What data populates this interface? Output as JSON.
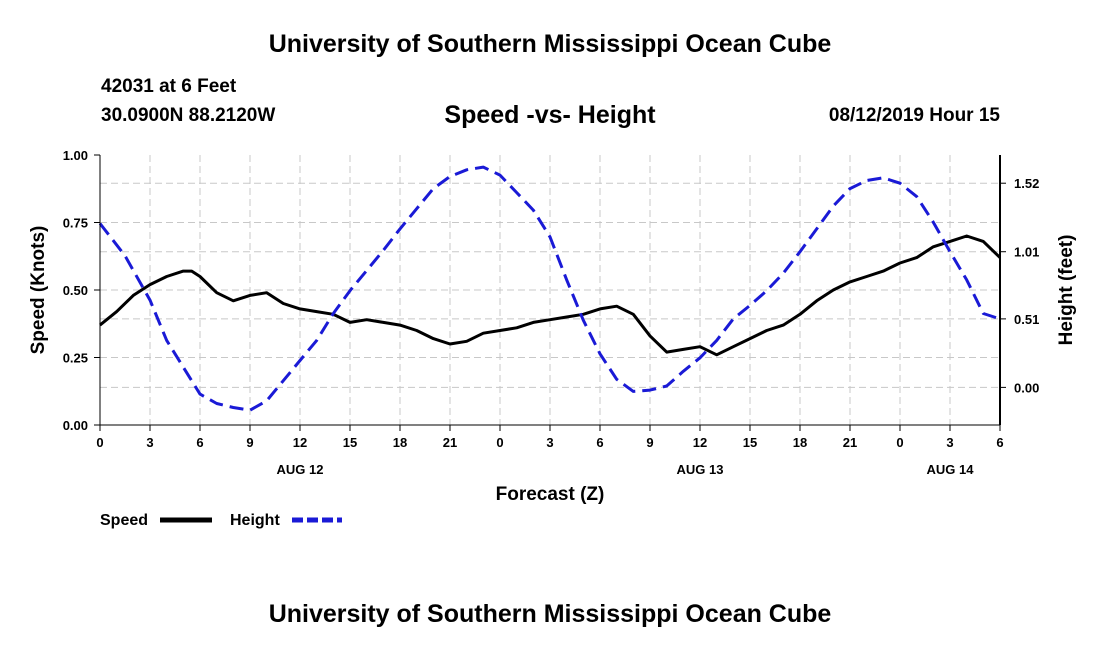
{
  "header": {
    "title": "University of Southern Mississippi Ocean Cube",
    "station": "42031 at 6 Feet",
    "coords": "30.0900N 88.2120W",
    "chart_title": "Speed -vs- Height",
    "datetime": "08/12/2019 Hour 15"
  },
  "footer": {
    "title": "University of Southern Mississippi Ocean Cube"
  },
  "colors": {
    "speed": "#000000",
    "height": "#1a1ad6",
    "grid": "#c8c8c8"
  },
  "chart_data": {
    "type": "line",
    "title": "Speed -vs- Height",
    "xlabel": "Forecast (Z)",
    "ylabel": "Speed (Knots)",
    "y2label": "Height (feet)",
    "xlim": [
      0,
      54
    ],
    "ylim": [
      0,
      1
    ],
    "y2lim": [
      -0.28,
      1.73
    ],
    "x_ticks": [
      0,
      3,
      6,
      9,
      12,
      15,
      18,
      21,
      24,
      27,
      30,
      33,
      36,
      39,
      42,
      45,
      48,
      51,
      54
    ],
    "x_tick_labels": [
      "0",
      "3",
      "6",
      "9",
      "12",
      "15",
      "18",
      "21",
      "0",
      "3",
      "6",
      "9",
      "12",
      "15",
      "18",
      "21",
      "0",
      "3",
      "6"
    ],
    "date_labels": [
      {
        "label": "AUG 12",
        "x": 12
      },
      {
        "label": "AUG 13",
        "x": 36
      },
      {
        "label": "AUG 14",
        "x": 51
      }
    ],
    "y_ticks": [
      0,
      0.25,
      0.5,
      0.75,
      1
    ],
    "y_tick_labels": [
      "0.00",
      "0.25",
      "0.50",
      "0.75",
      "1.00"
    ],
    "y2_ticks": [
      0,
      0.51,
      1.01,
      1.52
    ],
    "y2_tick_labels": [
      "0.00",
      "0.51",
      "1.01",
      "1.52"
    ],
    "legend": [
      {
        "name": "Speed",
        "style": "solid"
      },
      {
        "name": "Height",
        "style": "dashed"
      }
    ],
    "series": [
      {
        "name": "Speed",
        "axis": "left",
        "x": [
          0,
          1,
          2,
          3,
          4,
          5,
          5.5,
          6,
          7,
          8,
          9,
          10,
          11,
          12,
          13,
          14,
          15,
          16,
          17,
          18,
          19,
          20,
          21,
          22,
          23,
          24,
          25,
          26,
          27,
          28,
          29,
          30,
          31,
          32,
          33,
          34,
          35,
          36,
          37,
          38,
          39,
          40,
          41,
          42,
          43,
          44,
          45,
          46,
          47,
          48,
          49,
          50,
          51,
          52,
          53,
          54
        ],
        "values": [
          0.37,
          0.42,
          0.48,
          0.52,
          0.55,
          0.57,
          0.57,
          0.55,
          0.49,
          0.46,
          0.48,
          0.49,
          0.45,
          0.43,
          0.42,
          0.41,
          0.38,
          0.39,
          0.38,
          0.37,
          0.35,
          0.32,
          0.3,
          0.31,
          0.34,
          0.35,
          0.36,
          0.38,
          0.39,
          0.4,
          0.41,
          0.43,
          0.44,
          0.41,
          0.33,
          0.27,
          0.28,
          0.29,
          0.26,
          0.29,
          0.32,
          0.35,
          0.37,
          0.41,
          0.46,
          0.5,
          0.53,
          0.55,
          0.57,
          0.6,
          0.62,
          0.66,
          0.68,
          0.7,
          0.68,
          0.62
        ]
      },
      {
        "name": "Height",
        "axis": "right",
        "x": [
          0,
          1.5,
          3,
          4,
          5,
          6,
          7,
          8,
          9,
          10,
          11,
          12,
          13,
          14,
          15,
          16,
          17,
          18,
          19,
          20,
          21,
          22,
          23,
          24,
          25,
          26,
          27,
          28,
          29,
          30,
          31,
          32,
          33,
          34,
          35,
          36,
          37,
          38,
          39,
          40,
          41,
          42,
          43,
          44,
          45,
          46,
          47,
          48,
          49,
          50,
          51,
          52,
          53,
          54
        ],
        "values": [
          1.22,
          0.98,
          0.65,
          0.35,
          0.15,
          -0.05,
          -0.12,
          -0.15,
          -0.17,
          -0.1,
          0.05,
          0.2,
          0.35,
          0.55,
          0.72,
          0.87,
          1.02,
          1.18,
          1.33,
          1.48,
          1.57,
          1.62,
          1.64,
          1.58,
          1.45,
          1.32,
          1.12,
          0.8,
          0.5,
          0.25,
          0.06,
          -0.03,
          -0.02,
          0.01,
          0.12,
          0.22,
          0.35,
          0.51,
          0.61,
          0.72,
          0.85,
          1.01,
          1.18,
          1.35,
          1.48,
          1.54,
          1.56,
          1.52,
          1.42,
          1.23,
          1.01,
          0.8,
          0.55,
          0.51
        ]
      }
    ]
  }
}
